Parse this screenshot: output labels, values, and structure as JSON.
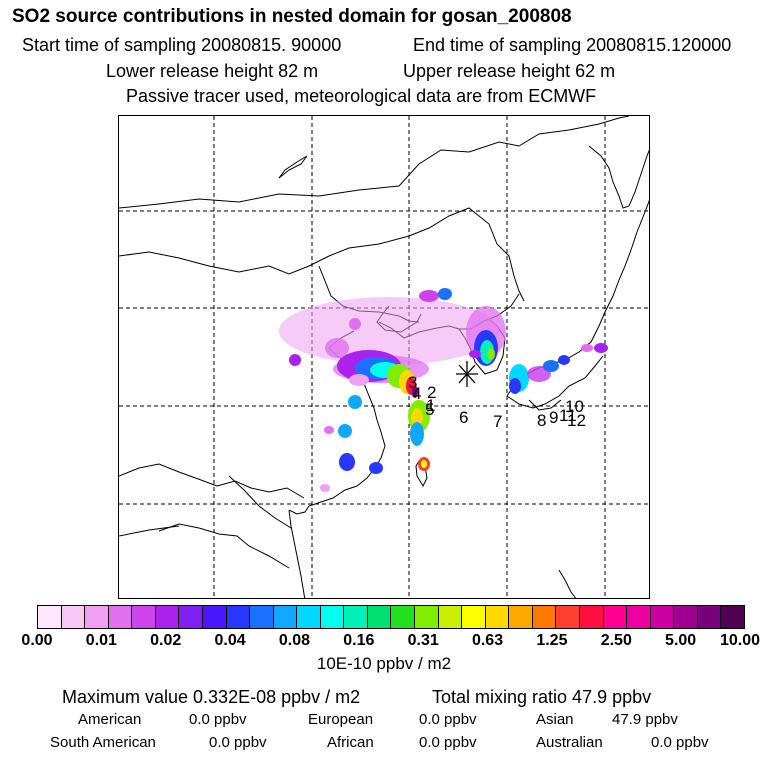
{
  "title": "SO2 source contributions in nested domain for gosan_200808",
  "header": {
    "start_time": "Start time of sampling 20080815. 90000",
    "end_time": "End time of sampling 20080815.120000",
    "lower_height": "Lower release height   82 m",
    "upper_height": "Upper release height   62 m",
    "tracer_note": "Passive tracer used, meteorological data are from ECMWF"
  },
  "map": {
    "receptor_marker": "asterisk",
    "source_labels": [
      "1",
      "2",
      "3",
      "4",
      "5",
      "6",
      "7",
      "8",
      "9",
      "10",
      "11",
      "12"
    ]
  },
  "colorbar": {
    "colors": [
      "#ffe8ff",
      "#f8c8f8",
      "#f0a0f0",
      "#e070f0",
      "#cc44ee",
      "#aa22ee",
      "#8020f0",
      "#4a18ff",
      "#2838ff",
      "#1c70ff",
      "#10a8ff",
      "#00d8ff",
      "#00ffee",
      "#00f0b8",
      "#00e070",
      "#20e020",
      "#80ec00",
      "#c8f000",
      "#ffff00",
      "#ffd800",
      "#ffa800",
      "#ff7800",
      "#ff4030",
      "#ff1040",
      "#ff0090",
      "#ee00a0",
      "#cc00a0",
      "#a00090",
      "#780078",
      "#500050"
    ],
    "tick_labels": [
      "0.00",
      "0.01",
      "0.02",
      "0.04",
      "0.08",
      "0.16",
      "0.31",
      "0.63",
      "1.25",
      "2.50",
      "5.00",
      "10.00"
    ],
    "unit": "10E-10 ppbv / m2"
  },
  "summary": {
    "max_label": "Maximum value  0.332E-08 ppbv / m2",
    "total_label": "Total mixing ratio       47.9 ppbv",
    "regions": [
      {
        "name": "American",
        "value": "0.0 ppbv"
      },
      {
        "name": "European",
        "value": "0.0 ppbv"
      },
      {
        "name": "Asian",
        "value": "47.9 ppbv"
      },
      {
        "name": "South American",
        "value": "0.0 ppbv"
      },
      {
        "name": "African",
        "value": "0.0 ppbv"
      },
      {
        "name": "Australian",
        "value": "0.0 ppbv"
      }
    ]
  }
}
